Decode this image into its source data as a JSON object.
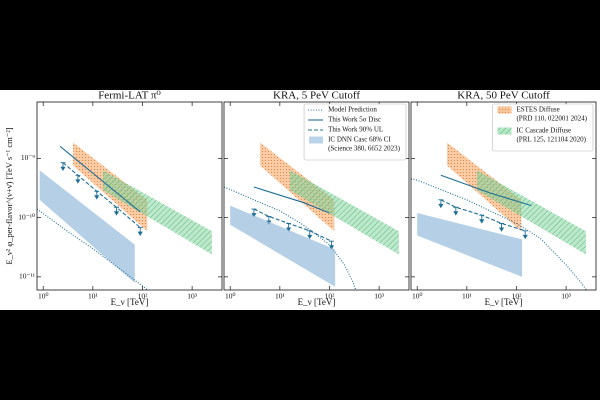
{
  "chart_data": [
    {
      "type": "line",
      "title": "Fermi-LAT π⁰",
      "xlabel": "E_ν [TeV]",
      "ylabel": "E_ν² φ_per-flavor^(ν+ν̄) [TeV s⁻¹ cm⁻²]",
      "xscale": "log",
      "yscale": "log",
      "xlim": [
        0.75,
        4000
      ],
      "ylim": [
        6e-12,
        9e-09
      ],
      "xticks": [
        {
          "value": 1,
          "label": "10⁰"
        },
        {
          "value": 10,
          "label": "10¹"
        },
        {
          "value": 100,
          "label": "10²"
        },
        {
          "value": 1000,
          "label": "10³"
        }
      ],
      "yticks": [
        {
          "value": 1e-11,
          "label": "10⁻¹¹"
        },
        {
          "value": 1e-10,
          "label": "10⁻¹⁰"
        },
        {
          "value": 1e-09,
          "label": "10⁻⁹"
        }
      ],
      "series": [
        {
          "kind": "band",
          "color": "#f5a05a",
          "hatch": "dots",
          "x": [
            4,
            125
          ],
          "lower": [
            7.6e-10,
            5.9e-11
          ],
          "upper": [
            1.85e-09,
            2e-10
          ]
        },
        {
          "kind": "band",
          "color": "#86d6a0",
          "hatch": "diagonal",
          "x": [
            16,
            2500
          ],
          "lower": [
            2.9e-10,
            2.4e-11
          ],
          "upper": [
            6.3e-10,
            5.9e-11
          ]
        },
        {
          "kind": "band",
          "color": "#8db6d9",
          "x": [
            0.85,
            70
          ],
          "lower": [
            2e-10,
            7.9e-12
          ],
          "upper": [
            6.3e-10,
            3.5e-11
          ]
        },
        {
          "kind": "line",
          "linestyle": "dotted",
          "color": "#1f6f96",
          "x": [
            0.75,
            3,
            10,
            30,
            100,
            200
          ],
          "values": [
            1.4e-10,
            6e-11,
            3e-11,
            1.5e-11,
            7e-12,
            4.5e-12
          ]
        },
        {
          "kind": "line",
          "linestyle": "solid",
          "color": "#1f6f96",
          "x": [
            2.2,
            90
          ],
          "values": [
            1.6e-09,
            1.25e-10
          ]
        },
        {
          "kind": "line",
          "linestyle": "dashed",
          "marker": "arrow",
          "color": "#1f6f96",
          "x": [
            2.5,
            5,
            12,
            30,
            90
          ],
          "values": [
            8.5e-10,
            5.2e-10,
            2.8e-10,
            1.5e-10,
            6.8e-11
          ]
        }
      ]
    },
    {
      "type": "line",
      "title": "KRA, 5 PeV Cutoff",
      "xlabel": "E_ν [TeV]",
      "xscale": "log",
      "yscale": "log",
      "legend": "upper right",
      "xlim": [
        0.75,
        4000
      ],
      "ylim": [
        6e-12,
        9e-09
      ],
      "xticks": [
        {
          "value": 1,
          "label": "10⁰"
        },
        {
          "value": 10,
          "label": "10¹"
        },
        {
          "value": 100,
          "label": "10²"
        },
        {
          "value": 1000,
          "label": "10³"
        }
      ],
      "yticks": [
        1e-11,
        1e-10,
        1e-09
      ],
      "series": [
        {
          "kind": "band",
          "color": "#f5a05a",
          "hatch": "dots",
          "x": [
            4,
            125
          ],
          "lower": [
            7.6e-10,
            5.9e-11
          ],
          "upper": [
            1.85e-09,
            2e-10
          ]
        },
        {
          "kind": "band",
          "color": "#86d6a0",
          "hatch": "diagonal",
          "x": [
            16,
            2500
          ],
          "lower": [
            2.9e-10,
            2.4e-11
          ],
          "upper": [
            6.3e-10,
            5.9e-11
          ]
        },
        {
          "kind": "line",
          "linestyle": "dotted",
          "color": "#1f6f96",
          "name": [
            "Model Prediction"
          ],
          "x": [
            0.75,
            1,
            3,
            10,
            30,
            100,
            200,
            300,
            400
          ],
          "values": [
            3.3e-10,
            3e-10,
            2e-10,
            1.3e-10,
            7.5e-11,
            3.5e-11,
            1.6e-11,
            8e-12,
            4e-12
          ]
        },
        {
          "kind": "line",
          "linestyle": "solid",
          "color": "#1f6f96",
          "name": [
            "This Work 5σ Disc"
          ],
          "x": [
            3,
            10,
            30,
            100
          ],
          "values": [
            3.3e-10,
            2.4e-10,
            1.8e-10,
            1.2e-10
          ]
        },
        {
          "kind": "line",
          "linestyle": "dashed",
          "marker": "arrow",
          "color": "#1f6f96",
          "name": [
            "This Work 90% UL"
          ],
          "x": [
            3,
            6,
            15,
            40,
            110
          ],
          "values": [
            1.4e-10,
            1.05e-10,
            8e-11,
            6e-11,
            4e-11
          ]
        },
        {
          "kind": "band",
          "color": "#8db6d9",
          "name": [
            "IC DNN Casc 68% CI",
            "(Science 380, 6652 2023)"
          ],
          "x": [
            1,
            130
          ],
          "lower": [
            7.6e-11,
            6.8e-12
          ],
          "upper": [
            1.6e-10,
            2.9e-11
          ]
        }
      ]
    },
    {
      "type": "line",
      "title": "KRA, 50 PeV Cutoff",
      "xlabel": "E_ν [TeV]",
      "xscale": "log",
      "yscale": "log",
      "legend": "upper right",
      "xlim": [
        0.75,
        4000
      ],
      "ylim": [
        6e-12,
        9e-09
      ],
      "xticks": [
        {
          "value": 1,
          "label": "10⁰"
        },
        {
          "value": 10,
          "label": "10¹"
        },
        {
          "value": 100,
          "label": "10²"
        },
        {
          "value": 1000,
          "label": "10³"
        }
      ],
      "yticks": [
        1e-11,
        1e-10,
        1e-09
      ],
      "series": [
        {
          "kind": "band",
          "color": "#f5a05a",
          "hatch": "dots",
          "name": [
            "ESTES Diffuse",
            "(PRD 110, 022001 2024)"
          ],
          "x": [
            4,
            125
          ],
          "lower": [
            7.6e-10,
            5.9e-11
          ],
          "upper": [
            1.85e-09,
            2e-10
          ]
        },
        {
          "kind": "band",
          "color": "#86d6a0",
          "hatch": "diagonal",
          "name": [
            "IC Cascade Diffuse",
            "(PRL 125, 121104 2020)"
          ],
          "x": [
            16,
            2500
          ],
          "lower": [
            2.9e-10,
            2.4e-11
          ],
          "upper": [
            6.3e-10,
            5.9e-11
          ]
        },
        {
          "kind": "band",
          "color": "#8db6d9",
          "x": [
            1,
            130
          ],
          "lower": [
            5e-11,
            1e-11
          ],
          "upper": [
            1.2e-10,
            4.3e-11
          ]
        },
        {
          "kind": "line",
          "linestyle": "dotted",
          "color": "#1f6f96",
          "x": [
            0.75,
            1,
            10,
            100,
            300,
            1000,
            2000,
            3000
          ],
          "values": [
            4.5e-10,
            4.3e-10,
            2e-10,
            8e-11,
            4.5e-11,
            1.6e-11,
            8e-12,
            5e-12
          ]
        },
        {
          "kind": "line",
          "linestyle": "solid",
          "color": "#1f6f96",
          "x": [
            3,
            30,
            200
          ],
          "values": [
            5.2e-10,
            2.6e-10,
            1.6e-10
          ]
        },
        {
          "kind": "line",
          "linestyle": "dashed",
          "marker": "arrow",
          "color": "#1f6f96",
          "x": [
            3,
            6,
            20,
            50,
            150
          ],
          "values": [
            2e-10,
            1.5e-10,
            1.1e-10,
            8e-11,
            6e-11
          ]
        }
      ]
    }
  ]
}
